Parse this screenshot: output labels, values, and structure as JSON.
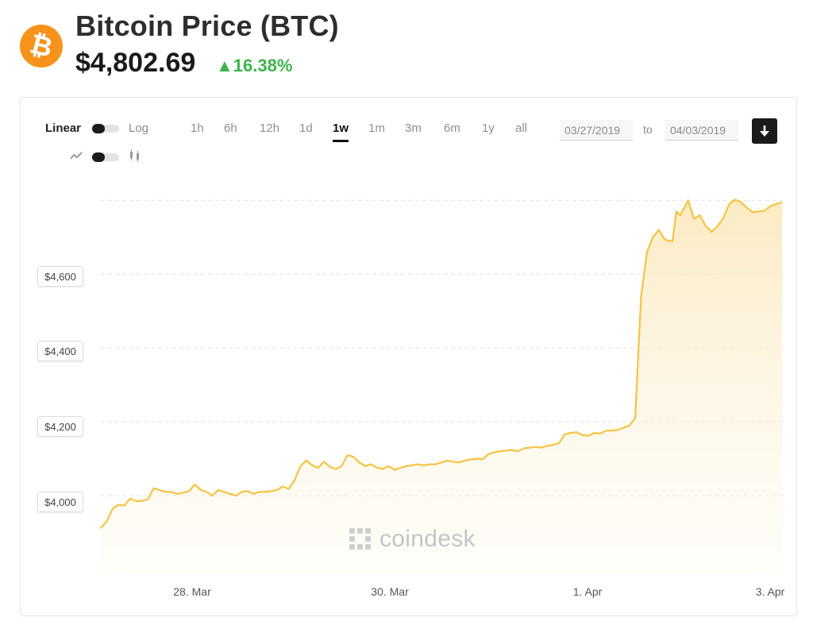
{
  "header": {
    "logo_icon": "bitcoin-icon",
    "logo_color": "#f7931a",
    "title": "Bitcoin Price",
    "ticker": "(BTC)",
    "price": "$4,802.69",
    "change": "▲16.38%",
    "change_color": "#3eb34b"
  },
  "controls": {
    "scale_linear_label": "Linear",
    "scale_log_label": "Log",
    "style_line_icon": "line-chart-icon",
    "style_candle_icon": "candlestick-icon",
    "ranges": [
      "1h",
      "6h",
      "12h",
      "1d",
      "1w",
      "1m",
      "3m",
      "6m",
      "1y",
      "all"
    ],
    "active_range": "1w",
    "date_from": "03/27/2019",
    "to_label": "to",
    "date_to": "04/03/2019",
    "download_icon": "download-icon"
  },
  "watermark": "coindesk",
  "chart_data": {
    "type": "area",
    "line_color": "#f6c342",
    "y_tick_labels": [
      "$4,600",
      "$4,400",
      "$4,200",
      "$4,000"
    ],
    "y_ticks": [
      4600,
      4400,
      4200,
      4000
    ],
    "ylim": [
      3785,
      4805
    ],
    "x_tick_labels": [
      "28. Mar",
      "30. Mar",
      "1. Apr",
      "3. Apr"
    ],
    "x_ticks": [
      0.75,
      2.75,
      4.75,
      6.75
    ],
    "xlim": [
      0,
      7
    ],
    "grid": true,
    "legend": "none",
    "series": [
      {
        "x": [
          0,
          0.06,
          0.12,
          0.18,
          0.24,
          0.3,
          0.36,
          0.42,
          0.48,
          0.54,
          0.6,
          0.66,
          0.72,
          0.78,
          0.84,
          0.9,
          0.96,
          1.02,
          1.08,
          1.14,
          1.2,
          1.26,
          1.32,
          1.38,
          1.44,
          1.5,
          1.56,
          1.62,
          1.68,
          1.74,
          1.8,
          1.86,
          1.92,
          1.98,
          2.04,
          2.1,
          2.16,
          2.22,
          2.28,
          2.34,
          2.4,
          2.46,
          2.52,
          2.58,
          2.64,
          2.7,
          2.76,
          2.82,
          2.88,
          2.94,
          3.0,
          3.06,
          3.12,
          3.18,
          3.24,
          3.3,
          3.36,
          3.42,
          3.48,
          3.54,
          3.6,
          3.66,
          3.72,
          3.78,
          3.84,
          3.9,
          3.96,
          4.02,
          4.08,
          4.14,
          4.2,
          4.26,
          4.32,
          4.38,
          4.44,
          4.5,
          4.56,
          4.62,
          4.68,
          4.74,
          4.8,
          4.86,
          4.92,
          4.98,
          5.04,
          5.1,
          5.16,
          5.22,
          5.28,
          5.34,
          5.4,
          5.46,
          5.52,
          5.58,
          5.64,
          5.7,
          5.76,
          5.8,
          5.84,
          5.88,
          5.92,
          5.96,
          6.0,
          6.06,
          6.12,
          6.18,
          6.24,
          6.3,
          6.36,
          6.42,
          6.48,
          6.54,
          6.6,
          6.66,
          6.72,
          6.78,
          6.84,
          6.9,
          6.96
        ],
        "y": [
          3912,
          3930,
          3965,
          3975,
          3973,
          3992,
          3985,
          3986,
          3990,
          4020,
          4015,
          4010,
          4010,
          4005,
          4008,
          4012,
          4030,
          4015,
          4010,
          4000,
          4015,
          4010,
          4005,
          4000,
          4010,
          4012,
          4005,
          4010,
          4010,
          4012,
          4015,
          4025,
          4018,
          4042,
          4080,
          4095,
          4082,
          4075,
          4092,
          4078,
          4072,
          4080,
          4110,
          4105,
          4090,
          4080,
          4085,
          4076,
          4072,
          4080,
          4070,
          4075,
          4080,
          4082,
          4085,
          4082,
          4085,
          4085,
          4090,
          4095,
          4092,
          4090,
          4095,
          4098,
          4100,
          4098,
          4112,
          4118,
          4120,
          4122,
          4124,
          4120,
          4128,
          4130,
          4132,
          4130,
          4135,
          4138,
          4142,
          4166,
          4170,
          4172,
          4164,
          4162,
          4170,
          4168,
          4176,
          4176,
          4178,
          4184,
          4190,
          4210,
          4540,
          4660,
          4700,
          4720,
          4695,
          4690,
          4690,
          4770,
          4760,
          4780,
          4800,
          4750,
          4760,
          4730,
          4715,
          4730,
          4752,
          4790,
          4802,
          4795,
          4780,
          4768,
          4770,
          4772,
          4785,
          4790,
          4795
        ],
        "y_note_unused": true
      }
    ]
  }
}
